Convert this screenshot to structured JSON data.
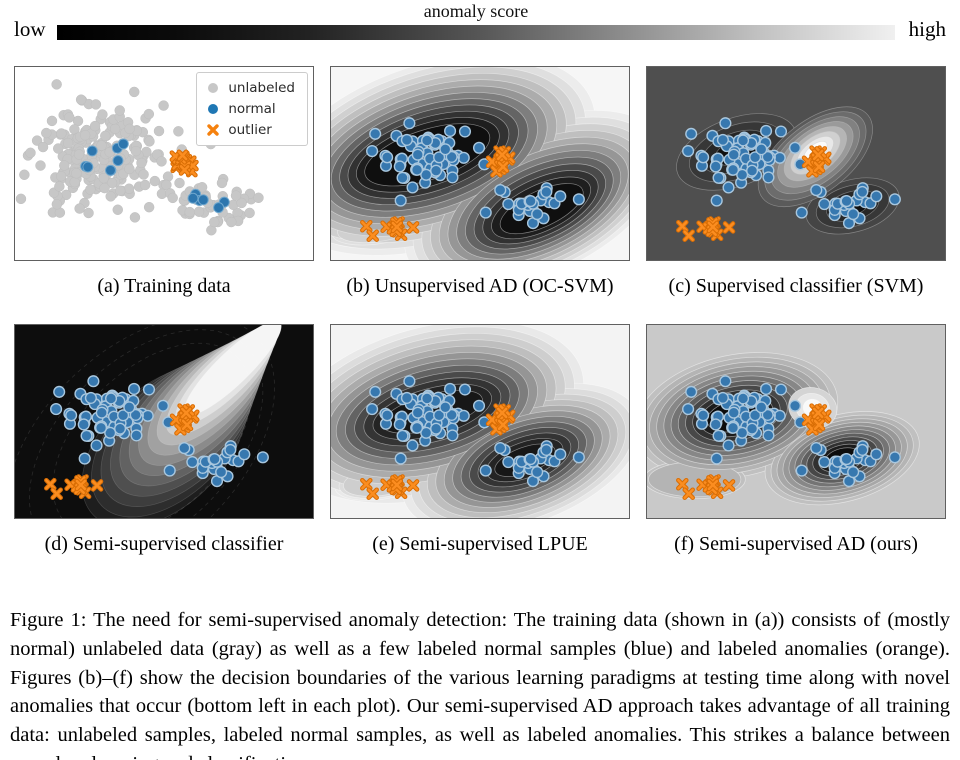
{
  "header": {
    "title": "anomaly score",
    "low_label": "low",
    "high_label": "high",
    "gradient_stops": [
      "#000000 0%",
      "#0b0b0b 14%",
      "#222222 30%",
      "#555555 50%",
      "#8e8e8e 68%",
      "#c2c2c2 84%",
      "#f0f0f0 100%"
    ]
  },
  "legend": {
    "items": [
      {
        "marker": "circle",
        "color": "#c7c7c7",
        "label": "unlabeled"
      },
      {
        "marker": "circle",
        "color": "#1f77b4",
        "label": "normal"
      },
      {
        "marker": "x",
        "color": "#f5810e",
        "label": "outlier"
      }
    ]
  },
  "figure_caption": {
    "text": "Figure 1: The need for semi-supervised anomaly detection: The training data (shown in (a)) consists of (mostly normal) unlabeled data (gray) as well as a few labeled normal samples (blue) and labeled anomalies (orange). Figures (b)–(f) show the decision boundaries of the various learning paradigms at testing time along with novel anomalies that occur (bottom left in each plot). Our semi-supervised AD approach takes advantage of all training data: unlabeled samples, labeled normal samples, as well as labeled anomalies. This strikes a balance between one-class learning and classification."
  },
  "chart_data": {
    "type": "scatter",
    "subtype": "2x3 panels; (a) raw scatter, (b)-(f) grayscale anomaly-score contour maps (black=low score, white=high) with identical scatter data plus novel anomalies bottom-left",
    "colors": {
      "normal_blue": "#1f77b4",
      "outlier_orange": "#ff7f0e",
      "unlabeled_gray": "#c7c7c7"
    },
    "clusters": {
      "gray_left_a": {
        "marker": "circle",
        "n": 220,
        "cx": 0.28,
        "cy": 0.46,
        "sx": 0.1,
        "sy": 0.13,
        "seed": 11,
        "fill": "#c7c7c7",
        "edge": "#bcbcbc",
        "ew": 0.5,
        "r": 5
      },
      "gray_right_a": {
        "marker": "circle",
        "n": 50,
        "cx": 0.665,
        "cy": 0.715,
        "sx": 0.066,
        "sy": 0.055,
        "seed": 12,
        "fill": "#c7c7c7",
        "edge": "#bcbcbc",
        "ew": 0.5,
        "r": 5
      },
      "gray_mid_a": {
        "marker": "circle",
        "n": 2,
        "cx": 0.58,
        "cy": 0.41,
        "sx": 0.03,
        "sy": 0.008,
        "seed": 13,
        "fill": "#c7c7c7",
        "edge": "#bcbcbc",
        "ew": 0.5,
        "r": 5
      },
      "blue_left_a": {
        "marker": "circle",
        "n": 8,
        "cx": 0.31,
        "cy": 0.47,
        "sx": 0.045,
        "sy": 0.05,
        "seed": 14,
        "fill": "#2d76ae",
        "edge": "#6ea6cd",
        "ew": 1,
        "r": 5
      },
      "blue_right_a": {
        "marker": "circle",
        "n": 6,
        "cx": 0.645,
        "cy": 0.695,
        "sx": 0.028,
        "sy": 0.028,
        "seed": 15,
        "fill": "#2d76ae",
        "edge": "#6ea6cd",
        "ew": 1,
        "r": 5
      },
      "orange_mid_a": {
        "marker": "x",
        "n": 17,
        "cx": 0.565,
        "cy": 0.5,
        "sx": 0.017,
        "sy": 0.033,
        "seed": 16,
        "fill": "#fb8d20",
        "edge": "#d96e05",
        "size": 3.6
      },
      "blue_left": {
        "marker": "circle",
        "n": 70,
        "cx": 0.315,
        "cy": 0.46,
        "sx": 0.078,
        "sy": 0.088,
        "seed": 21,
        "fill": "#3778af",
        "edge": "#a9c7de",
        "ew": 1.4,
        "r": 5.4
      },
      "blue_right": {
        "marker": "circle",
        "n": 26,
        "cx": 0.675,
        "cy": 0.725,
        "sx": 0.05,
        "sy": 0.042,
        "seed": 22,
        "fill": "#3778af",
        "edge": "#a9c7de",
        "ew": 1.4,
        "r": 5.4
      },
      "orange_mid": {
        "marker": "x",
        "n": 16,
        "cx": 0.563,
        "cy": 0.49,
        "sx": 0.016,
        "sy": 0.034,
        "seed": 23,
        "fill": "#fb8d20",
        "edge": "#d96e05",
        "size": 4
      },
      "orange_novel_main": {
        "marker": "x",
        "n": 10,
        "cx": 0.215,
        "cy": 0.84,
        "sx": 0.014,
        "sy": 0.022,
        "seed": 24,
        "fill": "#fb8d20",
        "edge": "#d96e05",
        "size": 4
      },
      "orange_novel_1": {
        "marker": "x",
        "n": 1,
        "cx": 0.118,
        "cy": 0.825,
        "sx": 0.001,
        "sy": 0.001,
        "seed": 25,
        "fill": "#fb8d20",
        "edge": "#d96e05",
        "size": 4
      },
      "orange_novel_2": {
        "marker": "x",
        "n": 1,
        "cx": 0.14,
        "cy": 0.873,
        "sx": 0.001,
        "sy": 0.001,
        "seed": 26,
        "fill": "#fb8d20",
        "edge": "#d96e05",
        "size": 4
      },
      "orange_novel_3": {
        "marker": "x",
        "n": 1,
        "cx": 0.274,
        "cy": 0.83,
        "sx": 0.001,
        "sy": 0.001,
        "seed": 27,
        "fill": "#fb8d20",
        "edge": "#d96e05",
        "size": 4
      }
    },
    "panels": [
      {
        "id": "a",
        "caption": "(a) Training data",
        "bg": "#ffffff",
        "has_legend": true,
        "points": [
          "gray_left_a",
          "gray_right_a",
          "gray_mid_a",
          "blue_left_a",
          "blue_right_a",
          "orange_mid_a"
        ]
      },
      {
        "id": "b",
        "caption": "(b) Unsupervised AD (OC-SVM)",
        "bg": "#f6f6f6",
        "line": "rgba(255,255,255,0.45)",
        "groups": [
          {
            "colors": [
              "#ececec",
              "#dfdfdf",
              "#d0d0d0",
              "#bfbfbf",
              "#acacac",
              "#969696",
              "#7e7e7e",
              "#646464",
              "#4a4a4a",
              "#323232",
              "#1e1e1e",
              "#0f0f0f"
            ],
            "stacks": [
              {
                "cx": 0.345,
                "cy": 0.455,
                "dcx": -0.002,
                "dcy": 0,
                "rot": -18,
                "rx0": 0.56,
                "drx": 0.031,
                "ry0": 0.47,
                "dry": 0.031
              },
              {
                "cx": 0.685,
                "cy": 0.69,
                "dcx": 0.002,
                "dcy": 0.004,
                "rot": -25,
                "rx0": 0.47,
                "drx": 0.029,
                "ry0": 0.385,
                "dry": 0.0265
              },
              {
                "cx": 0.17,
                "cy": 0.82,
                "rot": -10,
                "rx0": 0.19,
                "drx": 0.02,
                "ry0": 0.105,
                "dry": 0.012,
                "levels": 3
              }
            ]
          }
        ],
        "points": [
          "blue_left",
          "blue_right",
          "orange_mid",
          "orange_novel_main",
          "orange_novel_1",
          "orange_novel_2",
          "orange_novel_3"
        ]
      },
      {
        "id": "c",
        "caption": "(c) Supervised classifier (SVM)",
        "bg": "#4f4f4f",
        "line": "rgba(200,200,200,0.45)",
        "groups": [
          {
            "colors": [
              "#454545",
              "#373737",
              "#272727",
              "#101010"
            ],
            "stacks": [
              {
                "cx": 0.3,
                "cy": 0.44,
                "rot": -20,
                "rx0": 0.21,
                "drx": 0.045,
                "ry0": 0.175,
                "dry": 0.038
              },
              {
                "cx": 0.69,
                "cy": 0.72,
                "rot": -15,
                "rx0": 0.16,
                "drx": 0.035,
                "ry0": 0.135,
                "dry": 0.03
              }
            ]
          },
          {
            "colors": [
              "#5a5a5a",
              "#6c6c6c",
              "#818181",
              "#9a9a9a",
              "#b5b5b5",
              "#d0d0d0",
              "#e8e8e8",
              "#fbfbfb"
            ],
            "stacks": [
              {
                "cx": 0.565,
                "cy": 0.465,
                "dcy": -0.004,
                "rot": -38,
                "rx0": 0.225,
                "drx": 0.0255,
                "ry0": 0.185,
                "dry": 0.0215
              }
            ]
          }
        ],
        "points": [
          "blue_left",
          "blue_right",
          "orange_mid",
          "orange_novel_main",
          "orange_novel_1",
          "orange_novel_2",
          "orange_novel_3"
        ]
      },
      {
        "id": "d",
        "caption": "(d) Semi-supervised classifier",
        "bg": "#0d0d0d",
        "line": "rgba(255,255,255,0.16)",
        "groups": [
          {
            "colors": [
              "#1e1e1e",
              "#2d2d2d",
              "#3d3d3d",
              "#4f4f4f",
              "#626262",
              "#767676",
              "#8b8b8b",
              "#a1a1a1",
              "#b7b7b7",
              "#cecece",
              "#e3e3e3",
              "#f5f5f5"
            ],
            "stacks": [
              {
                "cx": 0.5,
                "cy": 0.63,
                "dcx": 0.021,
                "dcy": -0.037,
                "rot": -44,
                "rx0": 0.33,
                "drx": 0.01,
                "ry0": 0.31,
                "dry": 0.0205
              }
            ]
          }
        ],
        "rings": [
          {
            "cx": 0.46,
            "cy": 0.6,
            "rx": 0.4,
            "ry": 0.37,
            "rot": -44
          },
          {
            "cx": 0.44,
            "cy": 0.62,
            "rx": 0.47,
            "ry": 0.44,
            "rot": -44
          },
          {
            "cx": 0.42,
            "cy": 0.64,
            "rx": 0.54,
            "ry": 0.51,
            "rot": -44
          }
        ],
        "points": [
          "blue_left",
          "blue_right",
          "orange_mid",
          "orange_novel_main",
          "orange_novel_1",
          "orange_novel_2",
          "orange_novel_3"
        ]
      },
      {
        "id": "e",
        "caption": "(e) Semi-supervised LPUE",
        "bg": "#f3f3f3",
        "line": "rgba(255,255,255,0.45)",
        "groups": [
          {
            "colors": [
              "#e9e9e9",
              "#dcdcdc",
              "#cecece",
              "#bebebe",
              "#ababab",
              "#959595",
              "#7d7d7d",
              "#636363",
              "#4a4a4a",
              "#343434",
              "#242424",
              "#171717"
            ],
            "stacks": [
              {
                "cx": 0.34,
                "cy": 0.45,
                "rot": -15,
                "rx0": 0.52,
                "drx": 0.0315,
                "ry0": 0.44,
                "dry": 0.0318
              },
              {
                "cx": 0.64,
                "cy": 0.69,
                "dcx": 0.001,
                "dcy": 0.001,
                "rot": -20,
                "rx0": 0.42,
                "drx": 0.0285,
                "ry0": 0.34,
                "dry": 0.0248
              },
              {
                "cx": 0.18,
                "cy": 0.8,
                "rot": -10,
                "rx0": 0.17,
                "drx": 0.015,
                "ry0": 0.1,
                "dry": 0.01,
                "levels": 3
              }
            ]
          }
        ],
        "points": [
          "blue_left",
          "blue_right",
          "orange_mid",
          "orange_novel_main",
          "orange_novel_1",
          "orange_novel_2",
          "orange_novel_3"
        ]
      },
      {
        "id": "f",
        "caption": "(f) Semi-supervised AD (ours)",
        "bg": "#c9c9c9",
        "line": "rgba(255,255,255,0.5)",
        "groups": [
          {
            "colors": [
              "#c0c0c0",
              "#b4b4b4",
              "#a7a7a7",
              "#989898",
              "#878787",
              "#747474",
              "#5f5f5f",
              "#484848",
              "#313131",
              "#1c1c1c",
              "#0c0c0c"
            ],
            "stacks": [
              {
                "cx": 0.3,
                "cy": 0.47,
                "rot": -12,
                "rx0": 0.345,
                "drx": 0.0245,
                "ry0": 0.315,
                "dry": 0.0235
              },
              {
                "cx": 0.655,
                "cy": 0.69,
                "rot": -15,
                "rx0": 0.265,
                "drx": 0.0205,
                "ry0": 0.225,
                "dry": 0.0175
              },
              {
                "cx": 0.16,
                "cy": 0.8,
                "rot": 0,
                "rx0": 0.17,
                "drx": 0.015,
                "ry0": 0.1,
                "dry": 0.01,
                "levels": 2
              }
            ]
          },
          {
            "colors": [
              "#d4d4d4",
              "#e7e7e7",
              "#f9f9f9"
            ],
            "stacks": [
              {
                "cx": 0.556,
                "cy": 0.43,
                "rot": 15,
                "rx0": 0.082,
                "drx": 0.025,
                "ry0": 0.105,
                "dry": 0.03
              }
            ]
          }
        ],
        "points": [
          "blue_left",
          "blue_right",
          "orange_mid",
          "orange_novel_main",
          "orange_novel_1",
          "orange_novel_2",
          "orange_novel_3"
        ]
      }
    ]
  }
}
